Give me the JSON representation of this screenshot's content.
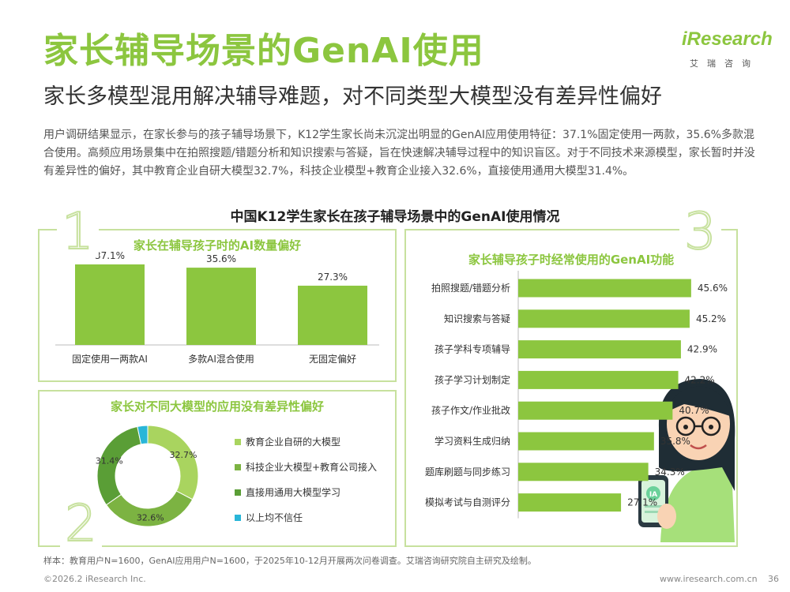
{
  "title": "家长辅导场景的GenAI使用",
  "subtitle": "家长多模型混用解决辅导难题，对不同类型大模型没有差异性偏好",
  "summary": "用户调研结果显示，在家长参与的孩子辅导场景下，K12学生家长尚未沉淀出明显的GenAI应用使用特征：37.1%固定使用一两款，35.6%多款混合使用。高频应用场景集中在拍照搜题/错题分析和知识搜索与答疑，旨在快速解决辅导过程中的知识盲区。对于不同技术来源模型，家长暂时并没有差异性的偏好，其中教育企业自研大模型32.7%，科技企业模型+教育企业接入32.6%，直接使用通用大模型31.4%。",
  "logo": {
    "brand": "iResearch",
    "sub": "艾瑞咨询"
  },
  "main_title": "中国K12学生家长在孩子辅导场景中的GenAI使用情况",
  "panel_numbers": [
    "1",
    "2",
    "3"
  ],
  "panels": {
    "p1_title": "家长在辅导孩子时的AI数量偏好",
    "p2_title": "家长对不同大模型的应用没有差异性偏好",
    "p3_title": "家长辅导孩子时经常使用的GenAI功能"
  },
  "colors": {
    "accent": "#8cc63f",
    "dark_green": "#5a9e36",
    "mid_green": "#7cb342",
    "cyan": "#29b6d8",
    "border": "#c7e19e"
  },
  "chart_data": [
    {
      "type": "bar",
      "title": "家长在辅导孩子时的AI数量偏好",
      "categories": [
        "固定使用一两款AI",
        "多款AI混合使用",
        "无固定偏好"
      ],
      "values": [
        37.1,
        35.6,
        27.3
      ],
      "value_labels": [
        "37.1%",
        "35.6%",
        "27.3%"
      ],
      "color": "#8cc63f"
    },
    {
      "type": "pie",
      "title": "家长对不同大模型的应用没有差异性偏好",
      "categories": [
        "教育企业自研的大模型",
        "科技企业大模型+教育公司接入",
        "直接用通用大模型学习",
        "以上均不信任"
      ],
      "values": [
        32.7,
        32.6,
        31.4,
        3.3
      ],
      "value_labels": [
        "32.7%",
        "32.6%",
        "31.4%",
        ""
      ],
      "colors": [
        "#a9d45f",
        "#7cb342",
        "#5a9e36",
        "#29b6d8"
      ]
    },
    {
      "type": "bar",
      "orientation": "horizontal",
      "title": "家长辅导孩子时经常使用的GenAI功能",
      "categories": [
        "拍照搜题/错题分析",
        "知识搜索与答疑",
        "孩子学科专项辅导",
        "孩子学习计划制定",
        "孩子作文/作业批改",
        "学习资料生成归纳",
        "题库刷题与同步练习",
        "模拟考试与自测评分"
      ],
      "values": [
        45.6,
        45.2,
        42.9,
        42.2,
        40.7,
        35.8,
        34.3,
        27.1
      ],
      "value_labels": [
        "45.6%",
        "45.2%",
        "42.9%",
        "42.2%",
        "40.7%",
        "35.8%",
        "34.3%",
        "27.1%"
      ],
      "color": "#8cc63f"
    }
  ],
  "phone_badge": "IA",
  "footnote": "样本：教育用户N=1600，GenAI应用用户N=1600，于2025年10-12月开展两次问卷调查。艾瑞咨询研究院自主研究及绘制。",
  "copyright": "©2026.2 iResearch Inc.",
  "website": "www.iresearch.com.cn",
  "page_number": "36"
}
